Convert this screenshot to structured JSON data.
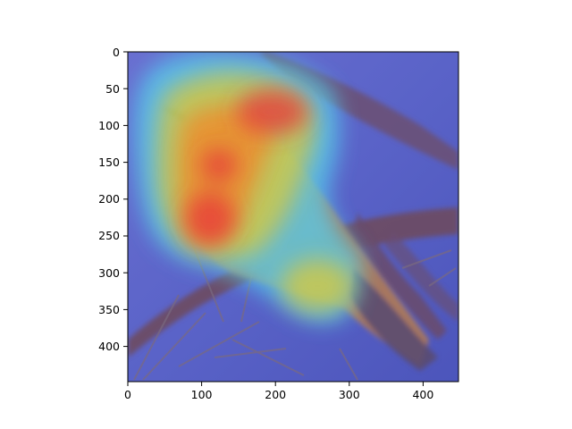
{
  "figure": {
    "type": "image_with_heatmap_overlay",
    "subject": "bird perched on pine branch",
    "overlay_colormap": "jet",
    "xaxis": {
      "range": [
        0,
        448
      ],
      "ticks": [
        0,
        100,
        200,
        300,
        400
      ],
      "tick_labels": [
        "0",
        "100",
        "200",
        "300",
        "400"
      ]
    },
    "yaxis": {
      "range": [
        0,
        448
      ],
      "inverted": true,
      "ticks": [
        0,
        50,
        100,
        150,
        200,
        250,
        300,
        350,
        400
      ],
      "tick_labels": [
        "0",
        "50",
        "100",
        "150",
        "200",
        "250",
        "300",
        "350",
        "400"
      ]
    }
  },
  "colors": {
    "background_blue": "#5a63c8",
    "hot_red": "#e8353a",
    "warm_orange": "#f08a2a",
    "yellow": "#d9c93a",
    "cyan": "#55d2f0",
    "branch": "#6d4a60",
    "bird_body": "#b07a55"
  }
}
